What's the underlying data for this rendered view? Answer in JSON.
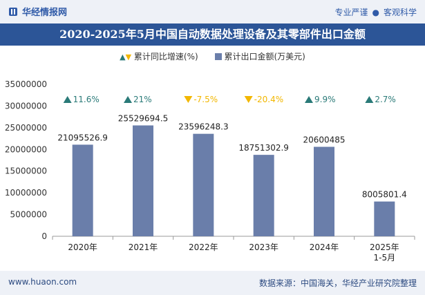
{
  "header": {
    "brand": "华经情报网",
    "tags": [
      "专业严谨",
      "客观科学"
    ]
  },
  "title": "2020-2025年5月中国自动数据处理设备及其零部件出口金额",
  "legend": {
    "growth_label": "累计同比增速(%)",
    "amount_label": "累计出口金额(万美元)"
  },
  "colors": {
    "bar": "#6a7eaa",
    "up": "#2a7a78",
    "down": "#f2b700",
    "title_bg": "#2c5597"
  },
  "footer": {
    "site": "www.huaon.com",
    "source": "数据来源：中国海关，华经产业研究院整理"
  },
  "chart_data": {
    "type": "bar",
    "categories": [
      "2020年",
      "2021年",
      "2022年",
      "2023年",
      "2024年",
      "2025年\n1-5月"
    ],
    "series": [
      {
        "name": "累计出口金额(万美元)",
        "values": [
          21095526.9,
          25529694.5,
          23596248.3,
          18751302.9,
          20600485,
          8005801.4
        ],
        "labels": [
          "21095526.9",
          "25529694.5",
          "23596248.3",
          "18751302.9",
          "20600485",
          "8005801.4"
        ]
      },
      {
        "name": "累计同比增速(%)",
        "values": [
          11.6,
          21,
          -7.5,
          -20.4,
          9.9,
          2.7
        ],
        "labels": [
          "11.6%",
          "21%",
          "-7.5%",
          "-20.4%",
          "9.9%",
          "2.7%"
        ]
      }
    ],
    "yticks": [
      "0",
      "5000000",
      "10000000",
      "15000000",
      "20000000",
      "25000000",
      "30000000",
      "35000000"
    ],
    "ylim": [
      0,
      35000000
    ],
    "legend_position": "top-center",
    "grid": false
  }
}
